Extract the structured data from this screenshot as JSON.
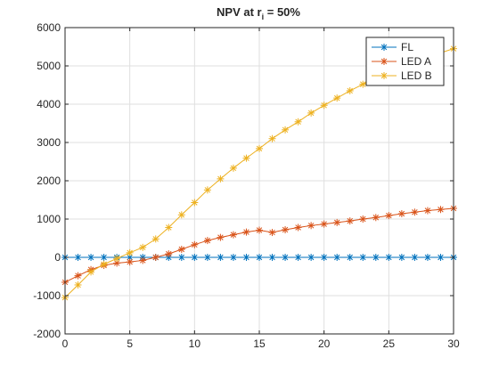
{
  "chart_data": {
    "type": "line",
    "title": "NPV at r",
    "title_sub": "i",
    "title_tail": " = 50%",
    "xlabel": "",
    "ylabel": "",
    "xlim": [
      0,
      30
    ],
    "ylim": [
      -2000,
      6000
    ],
    "xticks": [
      0,
      5,
      10,
      15,
      20,
      25,
      30
    ],
    "yticks": [
      -2000,
      -1000,
      0,
      1000,
      2000,
      3000,
      4000,
      5000,
      6000
    ],
    "grid": true,
    "legend_position": "top-right",
    "marker": "asterisk",
    "x": [
      0,
      1,
      2,
      3,
      4,
      5,
      6,
      7,
      8,
      9,
      10,
      11,
      12,
      13,
      14,
      15,
      16,
      17,
      18,
      19,
      20,
      21,
      22,
      23,
      24,
      25,
      26,
      27,
      28,
      29,
      30
    ],
    "series": [
      {
        "name": "FL",
        "color": "#0072BD",
        "values": [
          0,
          0,
          0,
          0,
          0,
          0,
          0,
          0,
          0,
          0,
          0,
          0,
          0,
          0,
          0,
          0,
          0,
          0,
          0,
          0,
          0,
          0,
          0,
          0,
          0,
          0,
          0,
          0,
          0,
          0,
          0
        ]
      },
      {
        "name": "LED A",
        "color": "#D95319",
        "values": [
          -650,
          -480,
          -320,
          -210,
          -150,
          -120,
          -80,
          0,
          90,
          210,
          330,
          440,
          520,
          590,
          660,
          710,
          650,
          720,
          780,
          830,
          870,
          910,
          950,
          1000,
          1040,
          1090,
          1140,
          1180,
          1220,
          1250,
          1280
        ]
      },
      {
        "name": "LED B",
        "color": "#EDB120",
        "values": [
          -1050,
          -720,
          -380,
          -180,
          -30,
          120,
          260,
          480,
          780,
          1110,
          1430,
          1760,
          2050,
          2330,
          2590,
          2840,
          3100,
          3330,
          3540,
          3770,
          3970,
          4160,
          4350,
          4520,
          4690,
          4850,
          4990,
          5100,
          5240,
          5340,
          5450
        ]
      }
    ]
  }
}
